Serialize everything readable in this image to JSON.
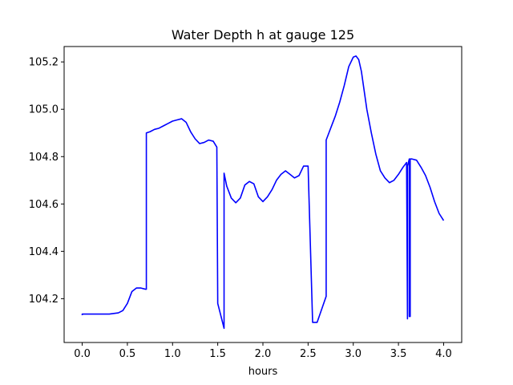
{
  "chart_data": {
    "type": "line",
    "title": "Water Depth h at gauge 125",
    "xlabel": "hours",
    "ylabel": "",
    "xlim": [
      -0.2,
      4.2
    ],
    "ylim": [
      104.015,
      105.265
    ],
    "xticks": [
      0.0,
      0.5,
      1.0,
      1.5,
      2.0,
      2.5,
      3.0,
      3.5,
      4.0
    ],
    "xtick_labels": [
      "0.0",
      "0.5",
      "1.0",
      "1.5",
      "2.0",
      "2.5",
      "3.0",
      "3.5",
      "4.0"
    ],
    "yticks": [
      104.2,
      104.4,
      104.6,
      104.8,
      105.0,
      105.2
    ],
    "ytick_labels": [
      "104.2",
      "104.4",
      "104.6",
      "104.8",
      "105.0",
      "105.2"
    ],
    "grid": false,
    "series": [
      {
        "color": "#0000ff",
        "x": [
          0.0,
          0.0,
          0.1,
          0.2,
          0.3,
          0.4,
          0.45,
          0.5,
          0.55,
          0.6,
          0.65,
          0.7,
          0.71,
          0.71,
          0.75,
          0.8,
          0.85,
          0.9,
          0.95,
          1.0,
          1.05,
          1.1,
          1.15,
          1.2,
          1.25,
          1.3,
          1.35,
          1.4,
          1.45,
          1.49,
          1.5,
          1.5,
          1.57,
          1.57,
          1.6,
          1.65,
          1.7,
          1.75,
          1.8,
          1.85,
          1.9,
          1.95,
          2.0,
          2.05,
          2.1,
          2.15,
          2.2,
          2.25,
          2.3,
          2.35,
          2.4,
          2.45,
          2.5,
          2.55,
          2.6,
          2.6,
          2.7,
          2.7,
          2.75,
          2.8,
          2.85,
          2.9,
          2.95,
          3.0,
          3.03,
          3.06,
          3.09,
          3.12,
          3.15,
          3.2,
          3.25,
          3.3,
          3.35,
          3.4,
          3.45,
          3.5,
          3.55,
          3.59,
          3.6,
          3.6,
          3.62,
          3.62,
          3.63,
          3.63,
          3.65,
          3.65,
          3.7,
          3.75,
          3.8,
          3.85,
          3.9,
          3.95,
          4.0
        ],
        "y": [
          104.13,
          104.135,
          104.135,
          104.135,
          104.135,
          104.14,
          104.15,
          104.18,
          104.23,
          104.245,
          104.245,
          104.24,
          104.24,
          104.9,
          104.905,
          104.915,
          104.92,
          104.93,
          104.94,
          104.95,
          104.955,
          104.96,
          104.945,
          104.905,
          104.875,
          104.855,
          104.86,
          104.87,
          104.865,
          104.84,
          104.18,
          104.18,
          104.075,
          104.73,
          104.675,
          104.625,
          104.605,
          104.625,
          104.68,
          104.695,
          104.685,
          104.63,
          104.61,
          104.63,
          104.66,
          104.7,
          104.725,
          104.74,
          104.725,
          104.71,
          104.72,
          104.76,
          104.76,
          104.1,
          104.1,
          104.1,
          104.21,
          104.87,
          104.92,
          104.97,
          105.03,
          105.1,
          105.18,
          105.22,
          105.225,
          105.21,
          105.16,
          105.08,
          105.0,
          104.9,
          104.81,
          104.74,
          104.71,
          104.69,
          104.7,
          104.725,
          104.755,
          104.775,
          104.115,
          104.76,
          104.79,
          104.125,
          104.125,
          104.79,
          104.79,
          104.79,
          104.785,
          104.755,
          104.72,
          104.67,
          104.61,
          104.56,
          104.53
        ]
      }
    ]
  }
}
